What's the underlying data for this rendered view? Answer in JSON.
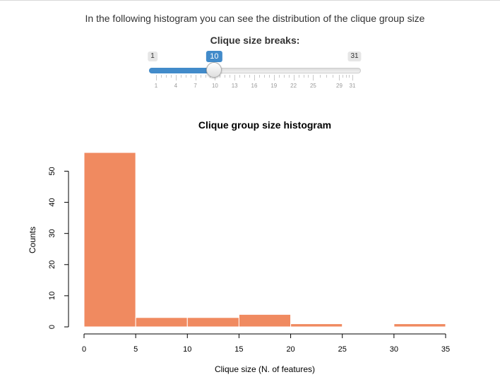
{
  "page": {
    "intro_text": "In the following histogram you can see the distribution of the clique group size"
  },
  "slider": {
    "label": "Clique size breaks:",
    "min": 1,
    "max": 31,
    "value": 10,
    "min_label": "1",
    "max_label": "31",
    "value_label": "10",
    "grid_values": [
      1,
      4,
      7,
      10,
      13,
      16,
      19,
      22,
      25,
      29,
      31
    ],
    "grid_labels": [
      "1",
      "4",
      "7",
      "10",
      "13",
      "16",
      "19",
      "22",
      "25",
      "29",
      "31"
    ],
    "fill_color": "#428bca"
  },
  "chart_data": {
    "type": "bar",
    "title": "Clique group size histogram",
    "xlabel": "Clique size (N. of features)",
    "ylabel": "Counts",
    "bins": [
      {
        "start": 0,
        "end": 5,
        "count": 56
      },
      {
        "start": 5,
        "end": 10,
        "count": 3
      },
      {
        "start": 10,
        "end": 15,
        "count": 3
      },
      {
        "start": 15,
        "end": 20,
        "count": 4
      },
      {
        "start": 20,
        "end": 25,
        "count": 1
      },
      {
        "start": 25,
        "end": 30,
        "count": 0
      },
      {
        "start": 30,
        "end": 35,
        "count": 1
      }
    ],
    "xlim": [
      0,
      35
    ],
    "ylim": [
      0,
      56
    ],
    "x_ticks": [
      0,
      5,
      10,
      15,
      20,
      25,
      30,
      35
    ],
    "x_tick_labels": [
      "0",
      "5",
      "10",
      "15",
      "20",
      "25",
      "30",
      "35"
    ],
    "y_ticks": [
      0,
      10,
      20,
      30,
      40,
      50
    ],
    "y_tick_labels": [
      "0",
      "10",
      "20",
      "30",
      "40",
      "50"
    ],
    "bar_color": "#f08a60",
    "grid": false,
    "legend": "none"
  }
}
